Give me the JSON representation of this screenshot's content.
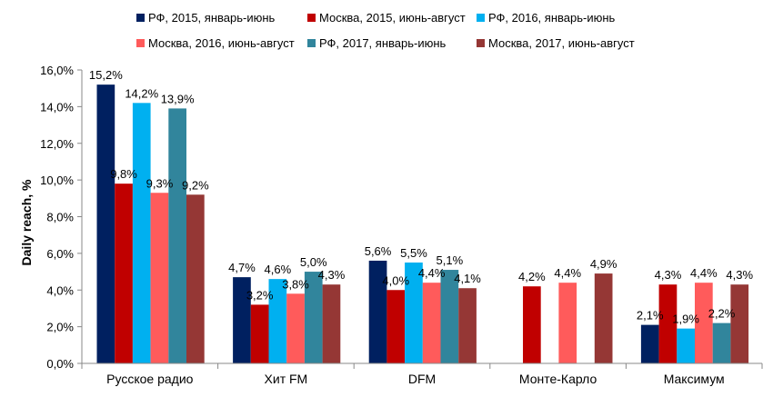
{
  "chart_data": {
    "type": "bar",
    "ylabel": "Daily reach, %",
    "xlabel": "",
    "title": "",
    "ylim": [
      0,
      16
    ],
    "y_ticks": [
      "0,0%",
      "2,0%",
      "4,0%",
      "6,0%",
      "8,0%",
      "10,0%",
      "12,0%",
      "14,0%",
      "16,0%"
    ],
    "y_tick_values": [
      0,
      2,
      4,
      6,
      8,
      10,
      12,
      14,
      16
    ],
    "grid": false,
    "legend_position": "top",
    "categories": [
      "Русское радио",
      "Хит FM",
      "DFM",
      "Монте-Карло",
      "Максимум"
    ],
    "series": [
      {
        "name": "РФ, 2015, январь-июнь",
        "color": "#002060",
        "values": [
          15.2,
          4.7,
          5.6,
          null,
          2.1
        ],
        "labels": [
          "15,2%",
          "4,7%",
          "5,6%",
          "",
          "2,1%"
        ]
      },
      {
        "name": "Москва, 2015, июнь-август",
        "color": "#c00000",
        "values": [
          9.8,
          3.2,
          4.0,
          4.2,
          4.3
        ],
        "labels": [
          "9,8%",
          "3,2%",
          "4,0%",
          "4,2%",
          "4,3%"
        ]
      },
      {
        "name": "РФ, 2016, январь-июнь",
        "color": "#00b0f0",
        "values": [
          14.2,
          4.6,
          5.5,
          null,
          1.9
        ],
        "labels": [
          "14,2%",
          "4,6%",
          "5,5%",
          "",
          "1,9%"
        ]
      },
      {
        "name": "Москва, 2016, июнь-август",
        "color": "#ff5b5b",
        "values": [
          9.3,
          3.8,
          4.4,
          4.4,
          4.4
        ],
        "labels": [
          "9,3%",
          "3,8%",
          "4,4%",
          "4,4%",
          "4,4%"
        ]
      },
      {
        "name": "РФ, 2017, январь-июнь",
        "color": "#31859c",
        "values": [
          13.9,
          5.0,
          5.1,
          null,
          2.2
        ],
        "labels": [
          "13,9%",
          "5,0%",
          "5,1%",
          "",
          "2,2%"
        ]
      },
      {
        "name": "Москва, 2017, июнь-август",
        "color": "#953735",
        "values": [
          9.2,
          4.3,
          4.1,
          4.9,
          4.3
        ],
        "labels": [
          "9,2%",
          "4,3%",
          "4,1%",
          "4,9%",
          "4,3%"
        ]
      }
    ]
  }
}
